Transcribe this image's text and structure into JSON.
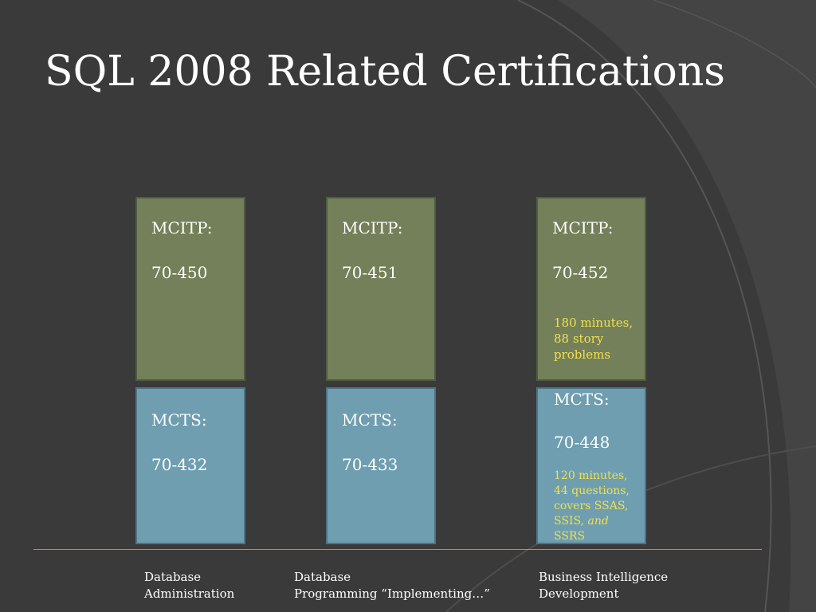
{
  "slide": {
    "title": "SQL 2008 Related Certifications"
  },
  "columns": [
    {
      "mcitp": {
        "label": "MCITP:",
        "exam": "70-450",
        "note": ""
      },
      "mcts": {
        "label": "MCTS:",
        "exam": "70-432",
        "note": ""
      },
      "caption": {
        "line1": "Database",
        "line2": "Administration"
      }
    },
    {
      "mcitp": {
        "label": "MCITP:",
        "exam": "70-451",
        "note": ""
      },
      "mcts": {
        "label": "MCTS:",
        "exam": "70-433",
        "note": ""
      },
      "caption": {
        "line1": "Database",
        "line2": "Programming “Implementing…”"
      }
    },
    {
      "mcitp": {
        "label": "MCITP:",
        "exam": "70-452",
        "note_lines": [
          "180 minutes,",
          "88 story",
          "problems"
        ]
      },
      "mcts": {
        "label": "MCTS:",
        "exam": "70-448",
        "note_lines": [
          "120 minutes,",
          "44 questions,",
          "covers SSAS,",
          "SSIS,"
        ],
        "note_italic": "and",
        "note_last": "SSRS"
      },
      "caption": {
        "line1": "Business Intelligence",
        "line2": "Development"
      }
    }
  ],
  "colors": {
    "background": "#3a3a3a",
    "mcitp_box": "#738059",
    "mcts_box": "#6e9eb0",
    "note_text": "#f2e04c",
    "baseline": "#6aa5bd"
  }
}
